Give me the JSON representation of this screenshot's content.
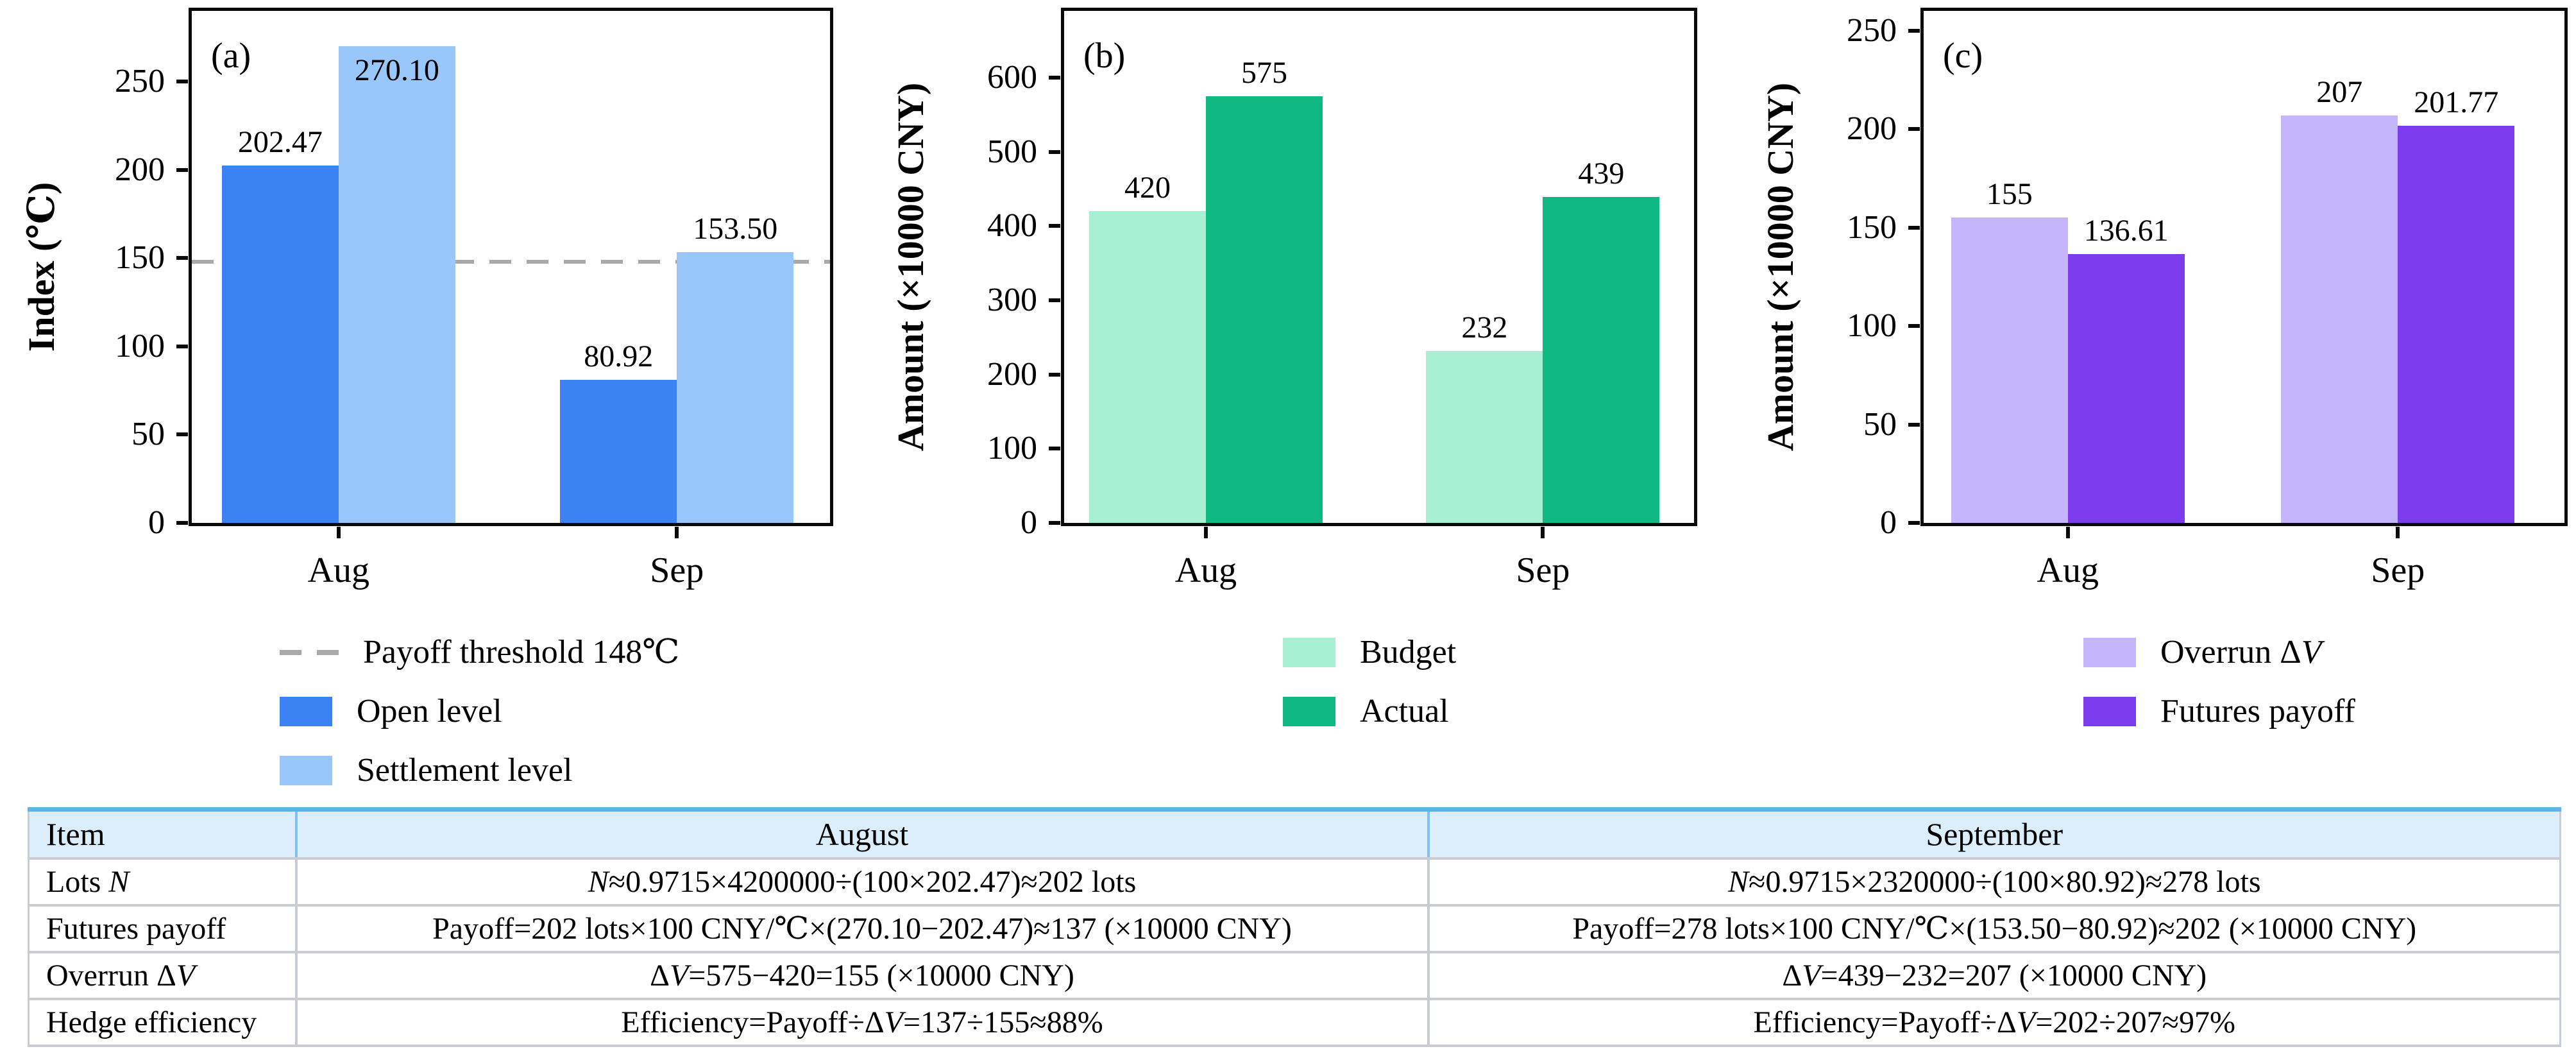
{
  "figure": {
    "background": "#ffffff"
  },
  "chart_data": [
    {
      "type": "bar",
      "panel_label": "(a)",
      "ylabel": "Index (℃)",
      "ylim": [
        0,
        290
      ],
      "yticks": [
        0,
        50,
        100,
        150,
        200,
        250
      ],
      "categories": [
        "Aug",
        "Sep"
      ],
      "group_centers_pct": [
        23,
        76
      ],
      "series": [
        {
          "name": "Open level",
          "color": "#3b82f5",
          "values": [
            202.47,
            80.92
          ],
          "value_labels": [
            "202.47",
            "80.92"
          ]
        },
        {
          "name": "Settlement level",
          "color": "#9ac7fb",
          "values": [
            270.1,
            153.5
          ],
          "value_labels": [
            "270.10",
            "153.50"
          ]
        }
      ],
      "threshold": {
        "value": 148,
        "color": "#a9a9a9",
        "style": "dashed"
      },
      "legend": [
        {
          "swatch": "dash",
          "color": "#a9a9a9",
          "label": "Payoff threshold 148℃"
        },
        {
          "swatch": "box",
          "color": "#3b82f5",
          "label": "Open level"
        },
        {
          "swatch": "box",
          "color": "#9ac7fb",
          "label": "Settlement level"
        }
      ]
    },
    {
      "type": "bar",
      "panel_label": "(b)",
      "ylabel": "Amount (×10000 CNY)",
      "ylim": [
        0,
        690
      ],
      "yticks": [
        0,
        100,
        200,
        300,
        400,
        500,
        600
      ],
      "categories": [
        "Aug",
        "Sep"
      ],
      "group_centers_pct": [
        22.5,
        76
      ],
      "series": [
        {
          "name": "Budget",
          "color": "#a8f0d4",
          "values": [
            420,
            232
          ],
          "value_labels": [
            "420",
            "232"
          ]
        },
        {
          "name": "Actual",
          "color": "#10b981",
          "values": [
            575,
            439
          ],
          "value_labels": [
            "575",
            "439"
          ]
        }
      ],
      "legend": [
        {
          "swatch": "box",
          "color": "#a8f0d4",
          "label": "Budget"
        },
        {
          "swatch": "box",
          "color": "#10b981",
          "label": "Actual"
        }
      ]
    },
    {
      "type": "bar",
      "panel_label": "(c)",
      "ylabel": "Amount (×10000 CNY)",
      "ylim": [
        0,
        260
      ],
      "yticks": [
        0,
        50,
        100,
        150,
        200,
        250
      ],
      "categories": [
        "Aug",
        "Sep"
      ],
      "group_centers_pct": [
        22.5,
        74
      ],
      "series": [
        {
          "name": "Overrun ΔV",
          "color": "#c4b5fd",
          "values": [
            155,
            207
          ],
          "value_labels": [
            "155",
            "207"
          ]
        },
        {
          "name": "Futures payoff",
          "color": "#7c3bed",
          "values": [
            136.61,
            201.77
          ],
          "value_labels": [
            "136.61",
            "201.77"
          ]
        }
      ],
      "legend": [
        {
          "swatch": "box",
          "color": "#c4b5fd",
          "label": "Overrun Δ*V*"
        },
        {
          "swatch": "box",
          "color": "#7c3bed",
          "label": "Futures payoff"
        }
      ]
    }
  ],
  "table": {
    "headers": [
      "Item",
      "August",
      "September"
    ],
    "rows": [
      [
        "Lots *N*",
        "*N*≈0.9715×4200000÷(100×202.47)≈202 lots",
        "*N*≈0.9715×2320000÷(100×80.92)≈278 lots"
      ],
      [
        "Futures payoff",
        "Payoff=202 lots×100 CNY/℃×(270.10−202.47)≈137 (×10000 CNY)",
        "Payoff=278 lots×100 CNY/℃×(153.50−80.92)≈202 (×10000 CNY)"
      ],
      [
        "Overrun Δ*V*",
        "Δ*V*=575−420=155 (×10000 CNY)",
        "Δ*V*=439−232=207 (×10000 CNY)"
      ],
      [
        "Hedge efficiency",
        "Efficiency=Payoff÷Δ*V*=137÷155≈88%",
        "Efficiency=Payoff÷Δ*V*=202÷207≈97%"
      ]
    ],
    "colors": {
      "header_bg": "#dceefb",
      "top_border": "#5fb2ea",
      "header_divider": "#7ec3f0",
      "grid": "#c9cdd2"
    }
  }
}
